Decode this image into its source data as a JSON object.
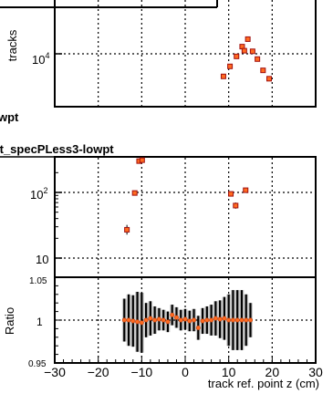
{
  "chart_data": [
    {
      "type": "scatter",
      "panel": "top",
      "ylabel": "tracks",
      "yscale": "log",
      "ytick_labels": [
        "10^4"
      ],
      "grid": true,
      "marker_color": "#d03020",
      "points": [
        {
          "x": 8.8,
          "y": 7000
        },
        {
          "x": 10.3,
          "y": 8200
        },
        {
          "x": 11.8,
          "y": 9600
        },
        {
          "x": 13.1,
          "y": 11200
        },
        {
          "x": 13.6,
          "y": 10500
        },
        {
          "x": 14.4,
          "y": 12600
        },
        {
          "x": 15.5,
          "y": 10400
        },
        {
          "x": 16.6,
          "y": 9200
        },
        {
          "x": 17.9,
          "y": 7700
        },
        {
          "x": 19.3,
          "y": 6750
        }
      ]
    },
    {
      "type": "scatter",
      "panel": "middle",
      "title_partial_1": "wpt",
      "title_partial_2": "lt_specPLess3-lowpt",
      "yscale": "log",
      "ytick_labels": [
        "10",
        "10^2"
      ],
      "grid": true,
      "marker_color": "#d03020",
      "points": [
        {
          "x": -13.4,
          "y": 27,
          "err": 4
        },
        {
          "x": -11.6,
          "y": 98,
          "err": 5
        },
        {
          "x": -10.6,
          "y": 300,
          "err": 10
        },
        {
          "x": -9.9,
          "y": 310,
          "err": 10
        },
        {
          "x": 10.5,
          "y": 95,
          "err": 5
        },
        {
          "x": 11.6,
          "y": 63,
          "err": 5
        },
        {
          "x": 13.9,
          "y": 108,
          "err": 5
        }
      ]
    },
    {
      "type": "scatter",
      "panel": "ratio",
      "ylabel": "Ratio",
      "xlabel": "track ref. point z (cm)",
      "xlim": [
        -30,
        30
      ],
      "ylim": [
        0.95,
        1.05
      ],
      "xtick_labels": [
        "-30",
        "-20",
        "-10",
        "0",
        "10",
        "20",
        "30"
      ],
      "ytick_labels": [
        "0.95",
        "1",
        "1.05"
      ],
      "grid": true,
      "marker_color": "#f07020",
      "points": [
        {
          "x": -14.0,
          "y": 1.0,
          "err": 0.025
        },
        {
          "x": -13.0,
          "y": 1.0,
          "err": 0.03
        },
        {
          "x": -12.0,
          "y": 0.999,
          "err": 0.03
        },
        {
          "x": -11.0,
          "y": 0.998,
          "err": 0.035
        },
        {
          "x": -10.0,
          "y": 0.997,
          "err": 0.035
        },
        {
          "x": -9.0,
          "y": 1.0,
          "err": 0.02
        },
        {
          "x": -8.0,
          "y": 1.002,
          "err": 0.02
        },
        {
          "x": -7.0,
          "y": 1.0,
          "err": 0.016
        },
        {
          "x": -6.0,
          "y": 1.001,
          "err": 0.013
        },
        {
          "x": -5.0,
          "y": 1.0,
          "err": 0.012
        },
        {
          "x": -4.0,
          "y": 0.998,
          "err": 0.012
        },
        {
          "x": -3.0,
          "y": 1.006,
          "err": 0.012
        },
        {
          "x": -2.0,
          "y": 1.003,
          "err": 0.012
        },
        {
          "x": -1.0,
          "y": 1.0,
          "err": 0.012
        },
        {
          "x": 0.0,
          "y": 1.001,
          "err": 0.012
        },
        {
          "x": 1.0,
          "y": 0.999,
          "err": 0.012
        },
        {
          "x": 2.0,
          "y": 1.0,
          "err": 0.013
        },
        {
          "x": 3.0,
          "y": 0.991,
          "err": 0.014
        },
        {
          "x": 4.0,
          "y": 0.999,
          "err": 0.015
        },
        {
          "x": 5.0,
          "y": 1.0,
          "err": 0.016
        },
        {
          "x": 6.0,
          "y": 1.0,
          "err": 0.018
        },
        {
          "x": 7.0,
          "y": 1.002,
          "err": 0.02
        },
        {
          "x": 8.0,
          "y": 1.001,
          "err": 0.022
        },
        {
          "x": 9.0,
          "y": 1.002,
          "err": 0.025
        },
        {
          "x": 10.0,
          "y": 1.0,
          "err": 0.03
        },
        {
          "x": 11.0,
          "y": 1.0,
          "err": 0.035
        },
        {
          "x": 12.0,
          "y": 1.0,
          "err": 0.035
        },
        {
          "x": 13.0,
          "y": 1.0,
          "err": 0.035
        },
        {
          "x": 14.0,
          "y": 1.0,
          "err": 0.03
        },
        {
          "x": 15.0,
          "y": 1.0,
          "err": 0.02
        }
      ]
    }
  ]
}
